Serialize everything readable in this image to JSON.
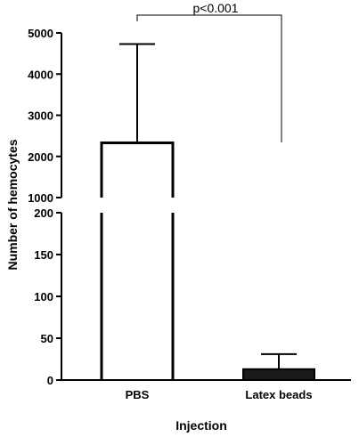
{
  "chart_data": {
    "type": "bar",
    "title": "",
    "xlabel": "Injection",
    "ylabel": "Number of hemocytes",
    "categories": [
      "PBS",
      "Latex beads"
    ],
    "values": [
      2330,
      13
    ],
    "error_upper": [
      4730,
      31
    ],
    "bar_fills": [
      "#ffffff",
      "#1a1a1a"
    ],
    "axis_break": true,
    "lower_segment": {
      "ylim": [
        0,
        200
      ],
      "ticks": [
        "0",
        "50",
        "100",
        "150",
        "200"
      ]
    },
    "upper_segment": {
      "ylim": [
        1000,
        5000
      ],
      "ticks": [
        "1000",
        "2000",
        "3000",
        "4000",
        "5000"
      ]
    },
    "annotation": "p<0.001",
    "grid": false,
    "legend": "none"
  }
}
